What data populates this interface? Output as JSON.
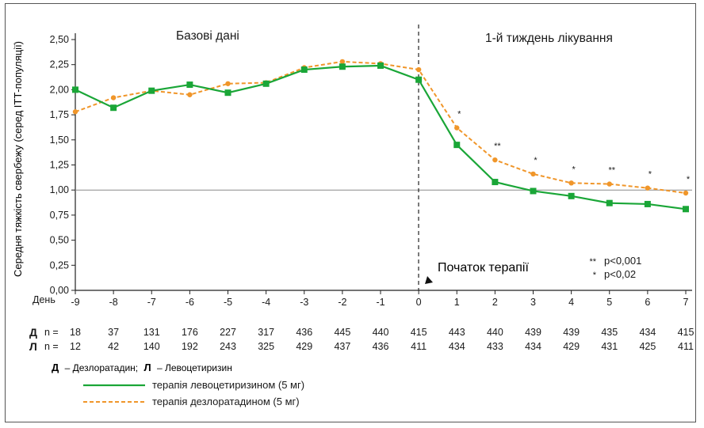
{
  "chart_data": {
    "type": "line",
    "ylabel": "Середня тяжкість свербежу (серед ІТТ-популяції)",
    "xlabel": "День",
    "ylim": [
      0,
      2.5
    ],
    "yticks": [
      "0,00",
      "0,25",
      "0,50",
      "0,75",
      "1,00",
      "1,25",
      "1,50",
      "1,75",
      "2,00",
      "2,25",
      "2,50"
    ],
    "categories": [
      "-9",
      "-8",
      "-7",
      "-6",
      "-5",
      "-4",
      "-3",
      "-2",
      "-1",
      "0",
      "1",
      "2",
      "3",
      "4",
      "5",
      "6",
      "7"
    ],
    "reference_line": 1.0,
    "periods": {
      "baseline": "Базові дані",
      "treatment": "1-й тиждень лікування"
    },
    "therapy_start": "Початок терапії",
    "series": [
      {
        "name": "терапія левоцетиризином (5 мг)",
        "short": "Л",
        "color": "#1aa637",
        "values": [
          2.0,
          1.82,
          1.99,
          2.05,
          1.97,
          2.06,
          2.2,
          2.23,
          2.24,
          2.1,
          1.45,
          1.08,
          0.99,
          0.94,
          0.87,
          0.86,
          0.81
        ],
        "n": [
          "12",
          "42",
          "140",
          "192",
          "243",
          "325",
          "429",
          "437",
          "436",
          "411",
          "434",
          "433",
          "434",
          "429",
          "431",
          "425",
          "411"
        ]
      },
      {
        "name": "терапія дезлоратадином (5 мг)",
        "short": "Д",
        "color": "#f0962a",
        "values": [
          1.78,
          1.92,
          1.99,
          1.95,
          2.06,
          2.07,
          2.22,
          2.28,
          2.26,
          2.2,
          1.62,
          1.3,
          1.16,
          1.07,
          1.06,
          1.02,
          0.97
        ],
        "n": [
          "18",
          "37",
          "131",
          "176",
          "227",
          "317",
          "436",
          "445",
          "440",
          "415",
          "443",
          "440",
          "439",
          "439",
          "435",
          "434",
          "415"
        ]
      }
    ],
    "significance": [
      "",
      "",
      "",
      "",
      "",
      "",
      "",
      "",
      "",
      "",
      "*",
      "**",
      "*",
      "*",
      "**",
      "*",
      "*"
    ],
    "significance_legend": [
      {
        "mark": "**",
        "text": "p<0,001"
      },
      {
        "mark": "*",
        "text": "p<0,02"
      }
    ],
    "n_label": "n =",
    "abbrev": {
      "D": "Д",
      "D_text": "– Дезлоратадин;",
      "L": "Л",
      "L_text": "– Левоцетиризин"
    }
  }
}
